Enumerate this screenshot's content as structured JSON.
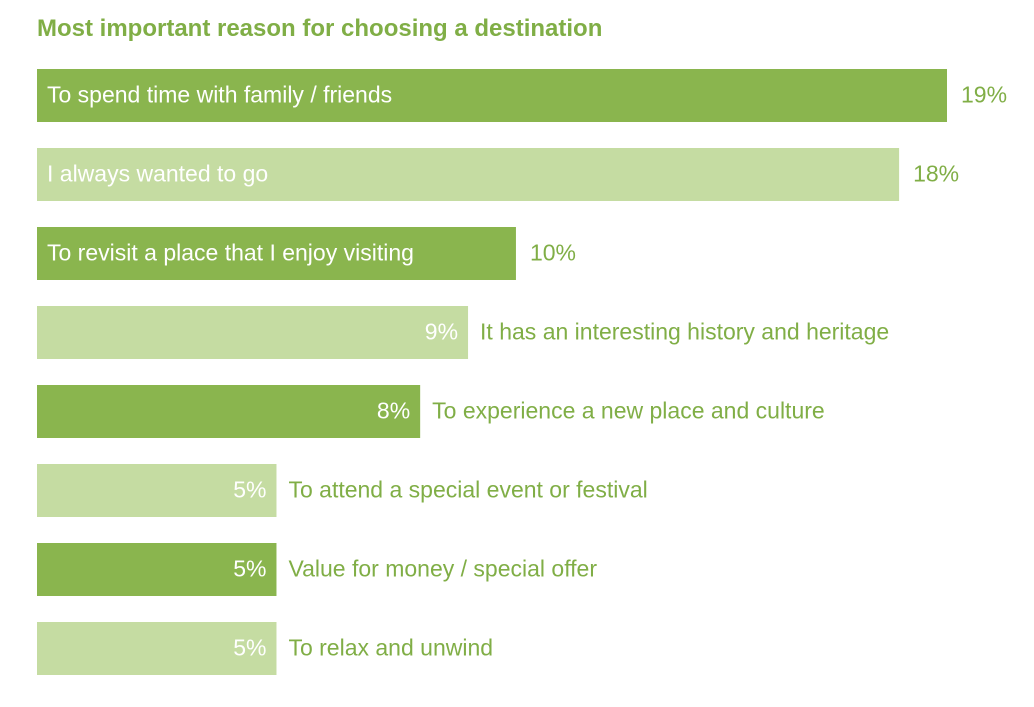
{
  "chart_data": {
    "type": "bar",
    "orientation": "horizontal",
    "title": "Most important reason for choosing a destination",
    "categories": [
      "To spend time with family / friends",
      "I always wanted to go",
      "To revisit a place that I enjoy visiting",
      "It has an interesting history and heritage",
      "To experience a new place and culture",
      "To attend a special event or festival",
      "Value for money / special offer",
      "To relax and unwind"
    ],
    "values": [
      19,
      18,
      10,
      9,
      8,
      5,
      5,
      5
    ],
    "value_labels": [
      "19%",
      "18%",
      "10%",
      "9%",
      "8%",
      "5%",
      "5%",
      "5%"
    ],
    "colors": [
      "#8ab54e",
      "#c5dca2",
      "#8ab54e",
      "#c5dca2",
      "#8ab54e",
      "#c5dca2",
      "#8ab54e",
      "#c5dca2"
    ],
    "title_color": "#80ae46"
  }
}
